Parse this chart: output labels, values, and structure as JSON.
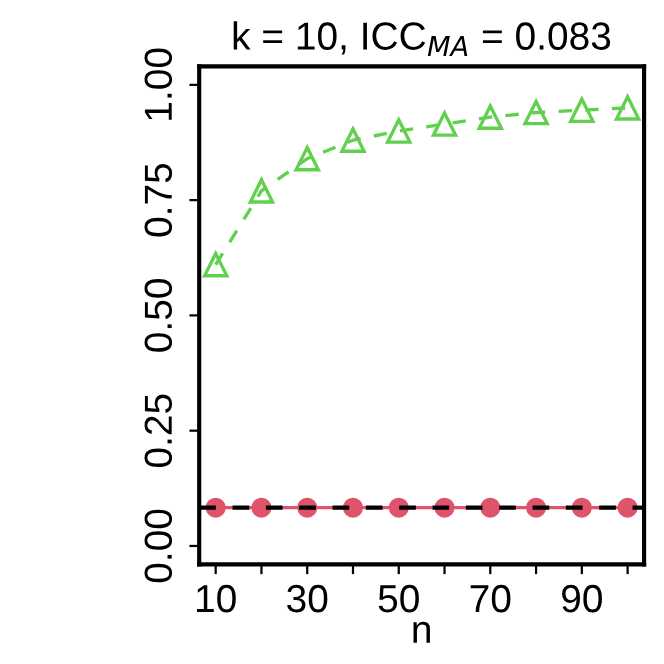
{
  "chart_data": {
    "type": "line",
    "title": "k = 10, ICC$_{MA}$ = 0.083",
    "xlabel": "n",
    "x": [
      10,
      20,
      30,
      40,
      50,
      60,
      70,
      80,
      90,
      100
    ],
    "series": [
      {
        "color": "#61d04f",
        "values": [
          0.61,
          0.77,
          0.84,
          0.88,
          0.9,
          0.915,
          0.93,
          0.94,
          0.945,
          0.95
        ],
        "marker": "triangle",
        "line_style": "dashed"
      },
      {
        "color": "#df536b",
        "values": [
          0.083,
          0.083,
          0.083,
          0.083,
          0.083,
          0.083,
          0.083,
          0.083,
          0.083,
          0.083
        ],
        "marker": "circle",
        "line_style": "solid"
      }
    ],
    "ref_lines": [
      {
        "axis": "y",
        "value": 0.083,
        "color": "#000000",
        "line_style": "dashed"
      }
    ],
    "xlim": [
      6.4,
      103.6
    ],
    "ylim": [
      -0.04,
      1.04
    ],
    "xticks": [
      10,
      {
        "value": 20,
        "label": null
      },
      30,
      {
        "value": 40,
        "label": null
      },
      50,
      {
        "value": 60,
        "label": null
      },
      70,
      {
        "value": 80,
        "label": null
      },
      90,
      {
        "value": 100,
        "label": null
      }
    ],
    "yticks": [
      {
        "value": 0,
        "label": "0.00"
      },
      0.25,
      {
        "value": 0.5,
        "label": "0.50"
      },
      0.75,
      {
        "value": 1,
        "label": "1.00"
      }
    ],
    "grid": false,
    "legend": false
  }
}
